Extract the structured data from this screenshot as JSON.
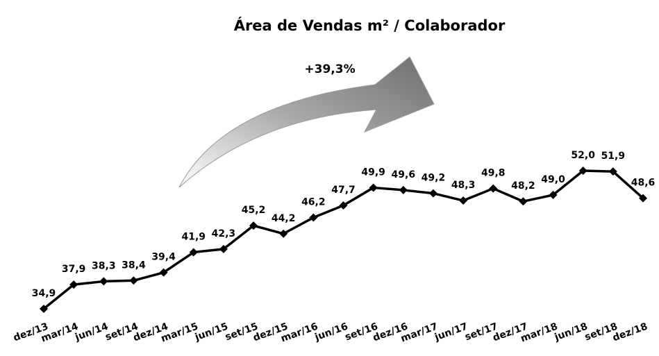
{
  "chart_data": {
    "type": "line",
    "title": "Área de Vendas m² / Colaborador",
    "annotation": "+39,3%",
    "categories": [
      "dez/13",
      "mar/14",
      "jun/14",
      "set/14",
      "dez/14",
      "mar/15",
      "jun/15",
      "set/15",
      "dez/15",
      "mar/16",
      "jun/16",
      "set/16",
      "dez/16",
      "mar/17",
      "jun/17",
      "set/17",
      "dez/17",
      "mar/18",
      "jun/18",
      "set/18",
      "dez/18"
    ],
    "values": [
      34.9,
      37.9,
      38.3,
      38.4,
      39.4,
      41.9,
      42.3,
      45.2,
      44.2,
      46.2,
      47.7,
      49.9,
      49.6,
      49.2,
      48.3,
      49.8,
      48.2,
      49.0,
      52.0,
      51.9,
      48.6
    ],
    "value_labels": [
      "34,9",
      "37,9",
      "38,3",
      "38,4",
      "39,4",
      "41,9",
      "42,3",
      "45,2",
      "44,2",
      "46,2",
      "47,7",
      "49,9",
      "49,6",
      "49,2",
      "48,3",
      "49,8",
      "48,2",
      "49,0",
      "52,0",
      "51,9",
      "48,6"
    ],
    "color": "#000000"
  }
}
